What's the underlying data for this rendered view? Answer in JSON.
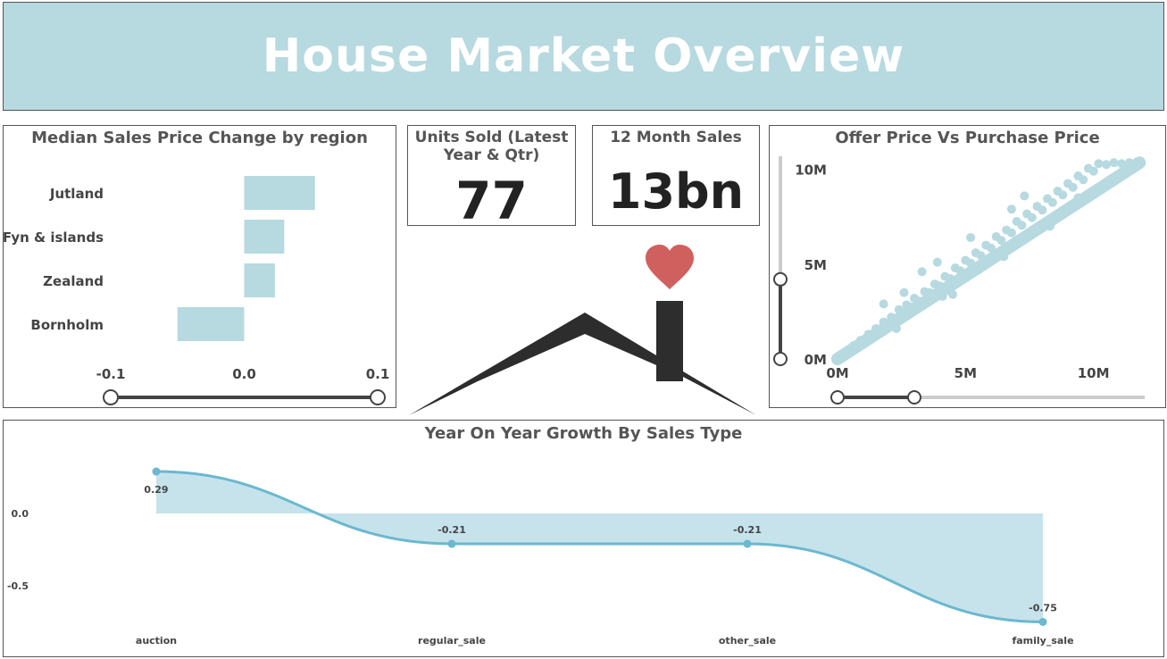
{
  "page": {
    "title": "House Market Overview"
  },
  "kpis": {
    "units_sold": {
      "label": "Units Sold (Latest Year & Qtr)",
      "value": "77"
    },
    "sales_12m": {
      "label": "12 Month Sales",
      "value": "13bn"
    }
  },
  "colors": {
    "bar": "#b7d9e0",
    "line": "#6bb8cf",
    "area": "#c6e3ec",
    "heart": "#d0605e",
    "roof": "#2d2d2d",
    "slider_track": "#cccccc"
  },
  "icons": [
    "house-roof-icon",
    "heart-icon"
  ],
  "chart_data": [
    {
      "type": "bar",
      "orientation": "horizontal",
      "title": "Median Sales Price Change by region",
      "categories": [
        "Jutland",
        "Fyn & islands",
        "Zealand",
        "Bornholm"
      ],
      "values": [
        0.053,
        0.03,
        0.023,
        -0.05
      ],
      "xlim": [
        -0.1,
        0.1
      ],
      "xticks": [
        "-0.1",
        "0.0",
        "0.1"
      ],
      "slider": {
        "range": [
          -0.1,
          0.1
        ]
      }
    },
    {
      "type": "scatter",
      "title": "Offer Price Vs Purchase Price",
      "xticks": [
        "0M",
        "5M",
        "10M"
      ],
      "yticks": [
        "0M",
        "5M",
        "10M"
      ],
      "xlim": [
        0,
        12000000
      ],
      "ylim": [
        0,
        10500000
      ],
      "x_slider": {
        "range": [
          0,
          3000000
        ]
      },
      "y_slider": {
        "range": [
          0,
          4200000
        ]
      },
      "trend": {
        "slope": 1.0,
        "from": 0,
        "to": 11800000
      },
      "points": [
        [
          120000,
          150000
        ],
        [
          250000,
          200000
        ],
        [
          380000,
          420000
        ],
        [
          500000,
          460000
        ],
        [
          620000,
          700000
        ],
        [
          750000,
          690000
        ],
        [
          900000,
          980000
        ],
        [
          1050000,
          1000000
        ],
        [
          1200000,
          1300000
        ],
        [
          1350000,
          1250000
        ],
        [
          1500000,
          1600000
        ],
        [
          1650000,
          1550000
        ],
        [
          1800000,
          1950000
        ],
        [
          1950000,
          1880000
        ],
        [
          2100000,
          2200000
        ],
        [
          2250000,
          2150000
        ],
        [
          2400000,
          2600000
        ],
        [
          2550000,
          2450000
        ],
        [
          2700000,
          2850000
        ],
        [
          2850000,
          2750000
        ],
        [
          3000000,
          3200000
        ],
        [
          3200000,
          3050000
        ],
        [
          3400000,
          3550000
        ],
        [
          3600000,
          3500000
        ],
        [
          3800000,
          3950000
        ],
        [
          4000000,
          3850000
        ],
        [
          4200000,
          4350000
        ],
        [
          4400000,
          4250000
        ],
        [
          4600000,
          4800000
        ],
        [
          4800000,
          4650000
        ],
        [
          5000000,
          5200000
        ],
        [
          5200000,
          5050000
        ],
        [
          5400000,
          5600000
        ],
        [
          5600000,
          5450000
        ],
        [
          5800000,
          6000000
        ],
        [
          6000000,
          5850000
        ],
        [
          6200000,
          6450000
        ],
        [
          6400000,
          6250000
        ],
        [
          6600000,
          6800000
        ],
        [
          6800000,
          6650000
        ],
        [
          7000000,
          7250000
        ],
        [
          7200000,
          7050000
        ],
        [
          7400000,
          7650000
        ],
        [
          7600000,
          7450000
        ],
        [
          7800000,
          8050000
        ],
        [
          8000000,
          7850000
        ],
        [
          8200000,
          8450000
        ],
        [
          8400000,
          8250000
        ],
        [
          8600000,
          8850000
        ],
        [
          8800000,
          8650000
        ],
        [
          9000000,
          9250000
        ],
        [
          9200000,
          9050000
        ],
        [
          9400000,
          9650000
        ],
        [
          9600000,
          9450000
        ],
        [
          9800000,
          10050000
        ],
        [
          10000000,
          9900000
        ],
        [
          10200000,
          10300000
        ],
        [
          10500000,
          10250000
        ],
        [
          10800000,
          10350000
        ],
        [
          11100000,
          10300000
        ],
        [
          11400000,
          10350000
        ],
        [
          11700000,
          10400000
        ],
        [
          4500000,
          3400000
        ],
        [
          3300000,
          4600000
        ],
        [
          6500000,
          5400000
        ],
        [
          2600000,
          3500000
        ],
        [
          7300000,
          8600000
        ],
        [
          1800000,
          2900000
        ],
        [
          5200000,
          6400000
        ],
        [
          8300000,
          7000000
        ],
        [
          3900000,
          5100000
        ],
        [
          6800000,
          7900000
        ],
        [
          9400000,
          8500000
        ],
        [
          2300000,
          1600000
        ],
        [
          4100000,
          3300000
        ],
        [
          5500000,
          4700000
        ]
      ]
    },
    {
      "type": "area",
      "title": "Year On Year Growth By Sales Type",
      "categories": [
        "auction",
        "regular_sale",
        "other_sale",
        "family_sale"
      ],
      "values": [
        0.29,
        -0.21,
        -0.21,
        -0.75
      ],
      "data_labels": [
        "0.29",
        "-0.21",
        "-0.21",
        "-0.75"
      ],
      "yticks": [
        "0.0",
        "-0.5"
      ],
      "ylim": [
        -0.8,
        0.35
      ]
    }
  ]
}
